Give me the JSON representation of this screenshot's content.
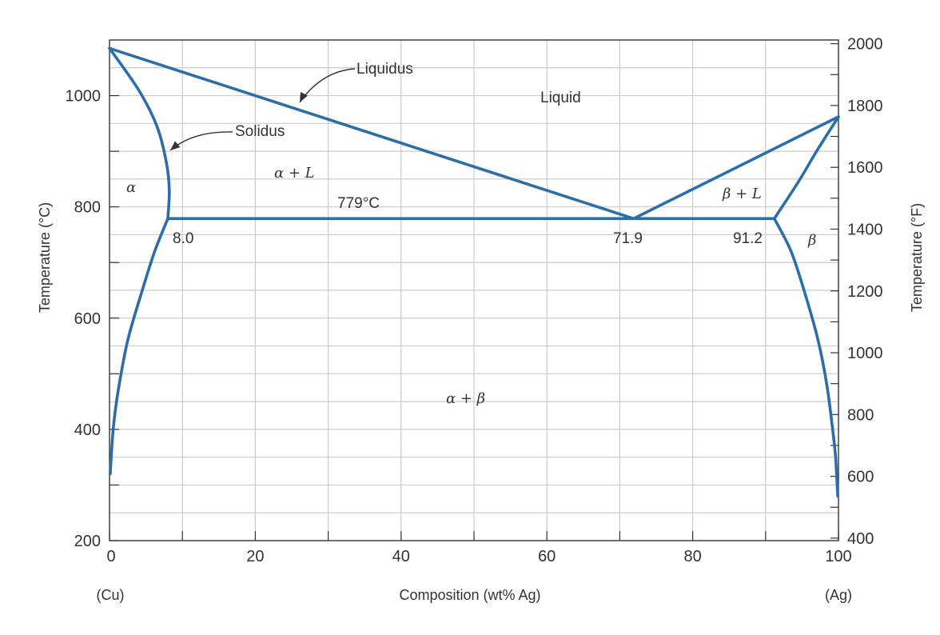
{
  "chart_data": {
    "type": "phase-diagram",
    "title": "",
    "xlabel": "Composition (wt% Ag)",
    "ylabel": "Temperature (°C)",
    "ylabel_right": "Temperature (°F)",
    "xlim": [
      0,
      100
    ],
    "ylim": [
      200,
      1100
    ],
    "x_ticks": [
      "0",
      "20",
      "40",
      "60",
      "80",
      "100"
    ],
    "y_ticks": [
      "200",
      "400",
      "600",
      "800",
      "1000"
    ],
    "y2_ticks": [
      "400",
      "600",
      "800",
      "1000",
      "1200",
      "1400",
      "1600",
      "1800",
      "2000"
    ],
    "x_end_labels": {
      "left": "(Cu)",
      "right": "(Ag)"
    },
    "grid": true,
    "line_color": "#2d6ea8",
    "annotations": {
      "liquidus": "Liquidus",
      "solidus": "Solidus",
      "liquid": "Liquid",
      "alpha_plus_L": "α + L",
      "beta_plus_L": "β + L",
      "alpha": "α",
      "beta": "β",
      "alpha_plus_beta": "α + β",
      "eutectic_temp": "779°C",
      "comp_alpha": "8.0",
      "comp_eutectic": "71.9",
      "comp_beta": "91.2"
    },
    "points": {
      "cu_melting": [
        0,
        1085
      ],
      "ag_melting": [
        100,
        962
      ],
      "eutectic": [
        71.9,
        779
      ],
      "alpha_max": [
        8.0,
        779
      ],
      "beta_max": [
        91.2,
        779
      ]
    },
    "curves": {
      "liquidus_left": [
        [
          0,
          1085
        ],
        [
          71.9,
          779
        ]
      ],
      "liquidus_right": [
        [
          71.9,
          779
        ],
        [
          100,
          962
        ]
      ],
      "solidus_alpha": [
        [
          0,
          1085
        ],
        [
          4,
          1010
        ],
        [
          6.5,
          945
        ],
        [
          7.8,
          880
        ],
        [
          8.2,
          830
        ],
        [
          8.0,
          779
        ]
      ],
      "solidus_beta": [
        [
          100,
          962
        ],
        [
          97,
          900
        ],
        [
          94.5,
          845
        ],
        [
          91.2,
          779
        ]
      ],
      "eutectic_isotherm": [
        [
          8.0,
          779
        ],
        [
          91.2,
          779
        ]
      ],
      "solvus_alpha": [
        [
          8.0,
          779
        ],
        [
          6.2,
          720
        ],
        [
          4.5,
          650
        ],
        [
          2.5,
          560
        ],
        [
          1.2,
          470
        ],
        [
          0.5,
          400
        ],
        [
          0.1,
          320
        ]
      ],
      "solvus_beta": [
        [
          91.2,
          779
        ],
        [
          93.5,
          720
        ],
        [
          95.5,
          640
        ],
        [
          97.2,
          560
        ],
        [
          98.4,
          480
        ],
        [
          99.2,
          400
        ],
        [
          99.6,
          350
        ],
        [
          99.9,
          280
        ]
      ]
    }
  }
}
